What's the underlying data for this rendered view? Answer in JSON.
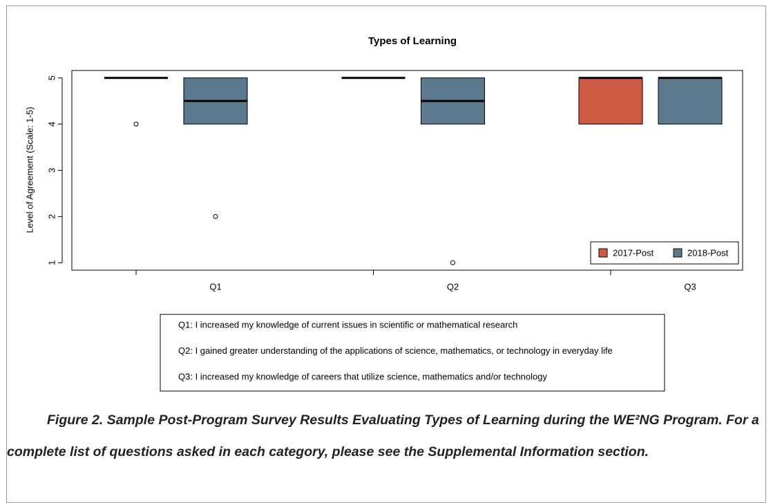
{
  "chart_data": {
    "type": "box",
    "title": "Types of Learning",
    "y_label": "Level of Agreement (Scale: 1-5)",
    "categories": [
      "Q1",
      "Q2",
      "Q3"
    ],
    "series": [
      {
        "name": "2017-Post",
        "color": "#cd5a43",
        "boxes": [
          {
            "min": 5,
            "q1": 5,
            "median": 5,
            "q3": 5,
            "max": 5,
            "outliers": [
              4
            ]
          },
          {
            "min": 5,
            "q1": 5,
            "median": 5,
            "q3": 5,
            "max": 5,
            "outliers": []
          },
          {
            "min": 4,
            "q1": 4,
            "median": 5,
            "q3": 5,
            "max": 5,
            "outliers": []
          }
        ]
      },
      {
        "name": "2018-Post",
        "color": "#5b7a8e",
        "boxes": [
          {
            "min": 4,
            "q1": 4,
            "median": 4.5,
            "q3": 5,
            "max": 5,
            "outliers": [
              2
            ]
          },
          {
            "min": 4,
            "q1": 4,
            "median": 4.5,
            "q3": 5,
            "max": 5,
            "outliers": [
              1
            ]
          },
          {
            "min": 4,
            "q1": 4,
            "median": 5,
            "q3": 5,
            "max": 5,
            "outliers": []
          }
        ]
      }
    ],
    "ylim": [
      0.84,
      5.16
    ],
    "yticks": [
      1,
      2,
      3,
      4,
      5
    ],
    "legend_position": "bottom-right",
    "notes": [
      "Q1: I increased my knowledge of current issues in scientific or mathematical research",
      "Q2: I gained greater understanding of the applications of science, mathematics, or technology in everyday life",
      "Q3: I increased my knowledge of careers that utilize science, mathematics and/or technology"
    ],
    "caption": "Figure 2. Sample Post-Program Survey Results Evaluating Types of Learning during the WE²NG Program. For a complete list of questions asked in each category, please see the Supplemental Information section."
  }
}
